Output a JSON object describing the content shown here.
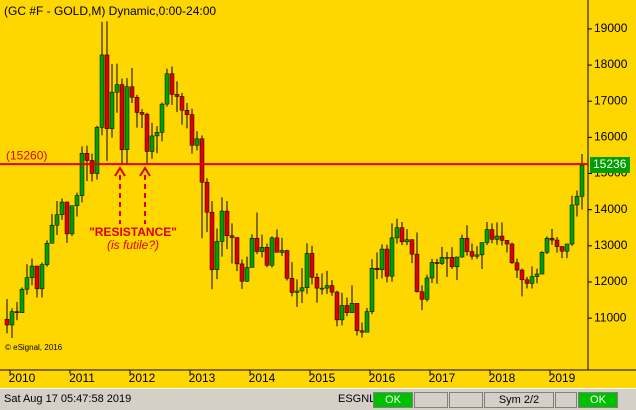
{
  "chart_data": {
    "type": "candlestick",
    "title": "(GC #F - GOLD,M) Dynamic,0:00-24:00",
    "ylim": [
      9620,
      19800
    ],
    "yticks": [
      11000,
      12000,
      13000,
      14000,
      15000,
      16000,
      17000,
      18000,
      19000
    ],
    "x_labels": [
      "2010",
      "2011",
      "2012",
      "2013",
      "2014",
      "2015",
      "2016",
      "2017",
      "2018",
      "2019"
    ],
    "up_color": "#00a000",
    "down_color": "#e00000",
    "resistance": {
      "value": 15260,
      "label": "(15260)"
    },
    "resistance_color": "#e00000",
    "annotation": "\"RESISTANCE\"",
    "annotation_sub": "(is futile?)",
    "copyright": "© eSignal, 2016",
    "open": [
      10970,
      10810,
      11180,
      11150,
      11800,
      12120,
      12440,
      11810,
      12480,
      13070,
      13570,
      13860,
      14210,
      13330,
      14110,
      14390,
      15560,
      15360,
      15000,
      16280,
      18280,
      16240,
      17250,
      17460,
      15660,
      17400,
      17110,
      16690,
      16640,
      15610,
      16040,
      16140,
      16920,
      17760,
      17190,
      17130,
      16750,
      16630,
      15780,
      15960,
      14760,
      13930,
      12340,
      13120,
      13960,
      13280,
      13230,
      12500,
      12020,
      12400,
      13210,
      12840,
      12960,
      12460,
      13220,
      12820,
      12870,
      12100,
      11710,
      11750,
      11840,
      12790,
      12130,
      11830,
      11830,
      11900,
      11720,
      10950,
      11350,
      11150,
      11410,
      10650,
      10610,
      11180,
      12380,
      12340,
      12910,
      12160,
      13220,
      13500,
      13110,
      13170,
      12770,
      11730,
      11520,
      12110,
      12540,
      12510,
      12680,
      12680,
      12420,
      12690,
      13210,
      12840,
      12710,
      12750,
      13090,
      13450,
      13180,
      13270,
      13150,
      13050,
      12530,
      12330,
      12060,
      11960,
      12150,
      12220,
      12820,
      13210,
      13160,
      12980,
      12850,
      13050,
      14130,
      14370
    ],
    "high": [
      11530,
      11270,
      11450,
      11850,
      12490,
      12650,
      12450,
      12540,
      13150,
      13880,
      14240,
      14310,
      14230,
      14110,
      14470,
      15750,
      15770,
      15550,
      16320,
      19200,
      19210,
      18030,
      18040,
      17630,
      17640,
      17920,
      17180,
      16780,
      16680,
      16400,
      16310,
      16960,
      17900,
      17960,
      17550,
      17230,
      16950,
      16790,
      16170,
      16050,
      14870,
      14240,
      13480,
      14340,
      14240,
      13620,
      13220,
      12620,
      12700,
      13320,
      13920,
      13310,
      13060,
      13260,
      13450,
      13220,
      12890,
      12550,
      12070,
      12380,
      13070,
      13000,
      12240,
      12240,
      12310,
      12050,
      11760,
      11700,
      11570,
      11910,
      11410,
      10880,
      11280,
      12630,
      12820,
      13040,
      13030,
      13620,
      13750,
      13660,
      13460,
      13180,
      13370,
      11910,
      12200,
      12640,
      12640,
      12970,
      12830,
      12960,
      12700,
      13310,
      13570,
      13060,
      12990,
      13100,
      13660,
      13620,
      13650,
      13650,
      13160,
      13090,
      12650,
      12370,
      12140,
      12430,
      12370,
      12850,
      13260,
      13470,
      13240,
      12990,
      13060,
      14390,
      14530,
      15540
    ],
    "low": [
      10580,
      10450,
      10940,
      11140,
      11650,
      11910,
      11570,
      11570,
      12420,
      13090,
      13300,
      13720,
      13080,
      13270,
      13810,
      14200,
      14790,
      14780,
      14830,
      16060,
      15350,
      15990,
      16680,
      15230,
      15280,
      16950,
      16270,
      16260,
      15270,
      15410,
      15560,
      15890,
      16850,
      16900,
      16700,
      16350,
      16250,
      15550,
      15640,
      13210,
      13380,
      11800,
      12080,
      12700,
      12910,
      12510,
      12300,
      11810,
      12000,
      12400,
      12770,
      12680,
      12410,
      12400,
      12820,
      12720,
      12040,
      11600,
      11310,
      11420,
      11670,
      11930,
      11430,
      11650,
      11670,
      11620,
      10770,
      10800,
      11050,
      11150,
      10520,
      10460,
      10610,
      11110,
      12080,
      12100,
      11990,
      12010,
      13060,
      13020,
      13020,
      12520,
      11710,
      11220,
      11460,
      11970,
      11950,
      12470,
      12140,
      12360,
      12050,
      12670,
      12730,
      12620,
      12640,
      12360,
      13020,
      13070,
      13030,
      13010,
      12820,
      12500,
      12110,
      11600,
      11820,
      11820,
      11960,
      12210,
      12770,
      13030,
      12810,
      12660,
      12660,
      13000,
      13810,
      14000
    ],
    "close": [
      10810,
      11180,
      11150,
      11800,
      12120,
      12440,
      11810,
      12480,
      13070,
      13570,
      13860,
      14210,
      13330,
      14110,
      14390,
      15560,
      15360,
      15000,
      16280,
      18280,
      16240,
      17250,
      17460,
      15660,
      17400,
      17110,
      16690,
      16640,
      15610,
      16040,
      16140,
      16920,
      17760,
      17190,
      17130,
      16750,
      16630,
      15780,
      15960,
      14760,
      13930,
      12340,
      13120,
      13960,
      13280,
      13230,
      12500,
      12020,
      12400,
      13210,
      12840,
      12960,
      12460,
      13220,
      12820,
      12870,
      12100,
      11710,
      11750,
      11840,
      12790,
      12130,
      11830,
      11830,
      11900,
      11720,
      10950,
      11350,
      11150,
      11410,
      10650,
      10610,
      11180,
      12380,
      12340,
      12910,
      12160,
      13220,
      13500,
      13110,
      13170,
      12770,
      11730,
      11520,
      12110,
      12540,
      12510,
      12680,
      12680,
      12420,
      12690,
      13210,
      12840,
      12710,
      12750,
      13090,
      13450,
      13180,
      13270,
      13150,
      13050,
      12530,
      12330,
      12060,
      11960,
      12150,
      12220,
      12820,
      13210,
      13160,
      12980,
      12850,
      13050,
      14130,
      14370,
      15236
    ]
  },
  "status": {
    "datetime": "Sat Aug 17 05:47:58 2019",
    "feed": "ESGNL:",
    "feed_state": "OK",
    "symbol": "Sym 2/2",
    "symbol_state": "OK"
  }
}
